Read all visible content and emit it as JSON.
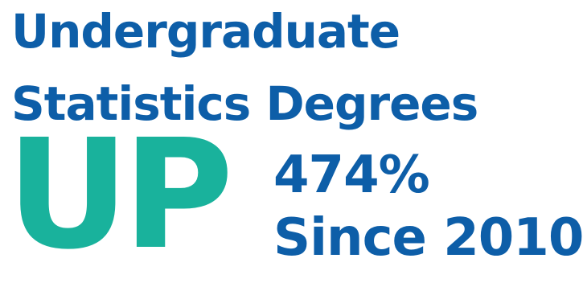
{
  "headline": {
    "line1": "Undergraduate",
    "line2": "Statistics Degrees"
  },
  "direction": "UP",
  "stat": {
    "percent": "474%",
    "since": "Since 2010"
  },
  "colors": {
    "headline_blue": "#0d5ea8",
    "accent_teal": "#19b29c",
    "background": "#ffffff"
  }
}
